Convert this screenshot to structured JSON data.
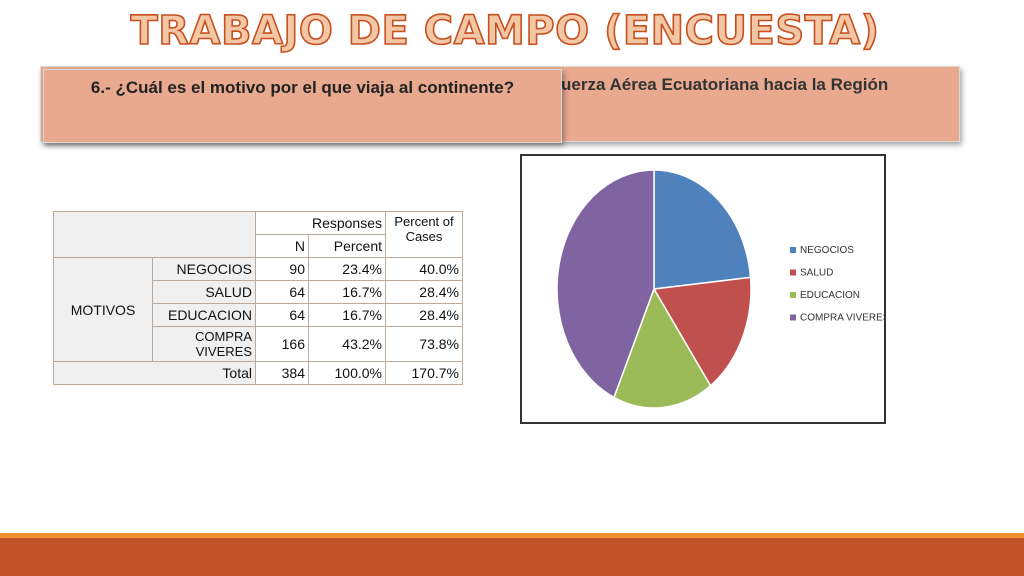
{
  "slide": {
    "title": "TRABAJO DE CAMPO (ENCUESTA)",
    "question": "6.- ¿Cuál es el motivo por el que viaja al continente?",
    "back_text": "uerza Aérea Ecuatoriana hacia la Región"
  },
  "table": {
    "headers": {
      "responses": "Responses",
      "percent_of_cases": "Percent of Cases",
      "n": "N",
      "percent": "Percent"
    },
    "group_label": "MOTIVOS",
    "rows": [
      {
        "label": "NEGOCIOS",
        "n": "90",
        "percent": "23.4%",
        "cases": "40.0%"
      },
      {
        "label": "SALUD",
        "n": "64",
        "percent": "16.7%",
        "cases": "28.4%"
      },
      {
        "label": "EDUCACION",
        "n": "64",
        "percent": "16.7%",
        "cases": "28.4%"
      },
      {
        "label": "COMPRA VIVERES",
        "n": "166",
        "percent": "43.2%",
        "cases": "73.8%"
      }
    ],
    "total": {
      "label": "Total",
      "n": "384",
      "percent": "100.0%",
      "cases": "170.7%"
    }
  },
  "chart_data": {
    "type": "pie",
    "title": "",
    "categories": [
      "NEGOCIOS",
      "SALUD",
      "EDUCACION",
      "COMPRA VIVERES"
    ],
    "values": [
      90,
      64,
      64,
      166
    ],
    "colors": [
      "#4f81bd",
      "#c0504d",
      "#9bbb59",
      "#8064a2"
    ],
    "legend": "right"
  }
}
